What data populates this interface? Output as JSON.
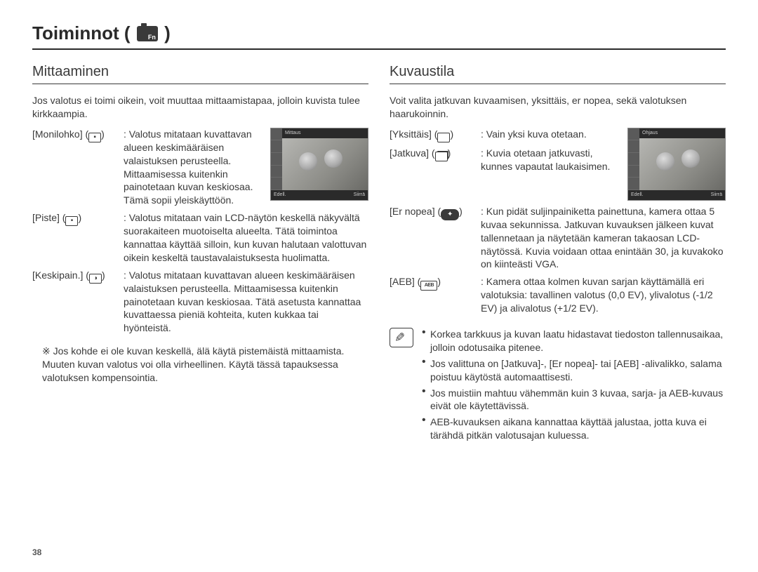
{
  "page_title_prefix": "Toiminnot (",
  "page_title_suffix": " )",
  "page_number": "38",
  "left": {
    "heading": "Mittaaminen",
    "intro": "Jos valotus ei toimi oikein, voit muuttaa mittaamistapaa, jolloin kuvista tulee kirkkaampia.",
    "thumb_top_label": "Mittaus",
    "thumb_bottom_left": "Edell.",
    "thumb_bottom_right": "Siirrä",
    "items": [
      {
        "label": "[Monilohko]",
        "glyph": "▪",
        "desc": "Valotus mitataan kuvattavan alueen keskimääräisen valaistuksen perusteella. Mittaamisessa kuitenkin painotetaan kuvan keskiosaa. Tämä sopii yleiskäyttöön."
      },
      {
        "label": "[Piste]",
        "glyph": "•",
        "desc": "Valotus mitataan vain LCD-näytön keskellä näkyvältä suorakaiteen muotoiselta alueelta. Tätä toimintoa kannattaa käyttää silloin, kun kuvan halutaan valottuvan oikein keskeltä taustavalaistuksesta huolimatta."
      },
      {
        "label": "[Keskipain.]",
        "glyph": "◑",
        "desc": "Valotus mitataan kuvattavan alueen keskimääräisen valaistuksen perusteella. Mittaamisessa kuitenkin painotetaan kuvan keskiosaa. Tätä asetusta kannattaa kuvattaessa pieniä kohteita, kuten kukkaa tai hyönteistä."
      }
    ],
    "note": "※ Jos kohde ei ole kuvan keskellä, älä käytä pistemäistä mittaamista. Muuten kuvan valotus voi olla virheellinen. Käytä tässä tapauksessa valotuksen kompensointia."
  },
  "right": {
    "heading": "Kuvaustila",
    "intro": "Voit valita jatkuvan kuvaamisen, yksittäis, er nopea, sekä valotuksen haarukoinnin.",
    "thumb_top_label": "Ohjaus",
    "thumb_bottom_left": "Edell.",
    "thumb_bottom_right": "Siirrä",
    "items": [
      {
        "label": "[Yksittäis]",
        "glyph_type": "rect",
        "desc": "Vain yksi kuva otetaan."
      },
      {
        "label": "[Jatkuva]",
        "glyph_type": "rect-stack",
        "desc": "Kuvia otetaan jatkuvasti, kunnes vapautat laukaisimen."
      },
      {
        "label": "[Er nopea]",
        "glyph_type": "black-pill",
        "desc": "Kun pidät suljinpainiketta painettuna, kamera ottaa 5 kuvaa sekunnissa. Jatkuvan kuvauksen jälkeen kuvat tallennetaan ja näytetään kameran takaosan LCD-näytössä. Kuvia voidaan ottaa enintään 30, ja kuvakoko on kiinteästi VGA."
      },
      {
        "label": "[AEB]",
        "glyph_type": "aeb",
        "glyph_text": "AEB",
        "desc": "Kamera ottaa kolmen kuvan sarjan käyttämällä eri valotuksia: tavallinen valotus (0,0 EV), ylivalotus (-1/2 EV) ja alivalotus (+1/2 EV)."
      }
    ],
    "info": [
      "Korkea tarkkuus ja kuvan laatu hidastavat tiedoston tallennusaikaa, jolloin odotusaika pitenee.",
      "Jos valittuna on [Jatkuva]-, [Er nopea]- tai [AEB] -alivalikko, salama poistuu käytöstä automaattisesti.",
      "Jos muistiin mahtuu vähemmän kuin 3 kuvaa, sarja- ja AEB-kuvaus eivät ole käytettävissä.",
      "AEB-kuvauksen aikana kannattaa käyttää jalustaa, jotta kuva ei tärähdä pitkän valotusajan kuluessa."
    ]
  }
}
